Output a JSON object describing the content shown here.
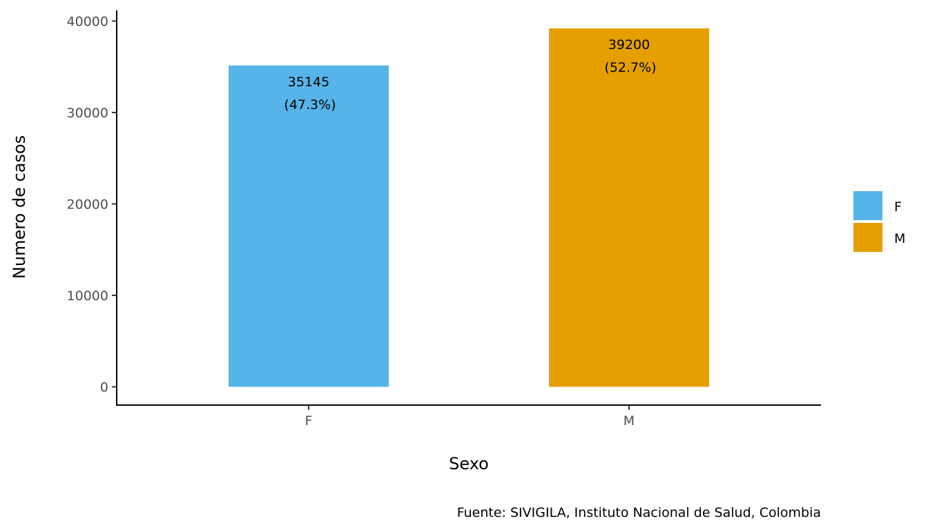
{
  "chart_data": {
    "type": "bar",
    "categories": [
      "F",
      "M"
    ],
    "values": [
      35145,
      39200
    ],
    "percent_labels": [
      "(47.3%)",
      "(52.7%)"
    ],
    "value_labels": [
      "35145",
      "39200"
    ],
    "colors": [
      "#56B4E9",
      "#E69F00"
    ],
    "title": "",
    "xlabel": "Sexo",
    "ylabel": "Numero de casos",
    "ylim": [
      0,
      41200
    ],
    "yticks": [
      0,
      10000,
      20000,
      30000,
      40000
    ],
    "ytick_labels": [
      "0",
      "10000",
      "20000",
      "30000",
      "40000"
    ],
    "grid": false,
    "legend": {
      "position": "right",
      "entries": [
        {
          "label": "F",
          "color": "#56B4E9"
        },
        {
          "label": "M",
          "color": "#E69F00"
        }
      ]
    },
    "caption": "Fuente: SIVIGILA, Instituto Nacional de Salud, Colombia"
  }
}
